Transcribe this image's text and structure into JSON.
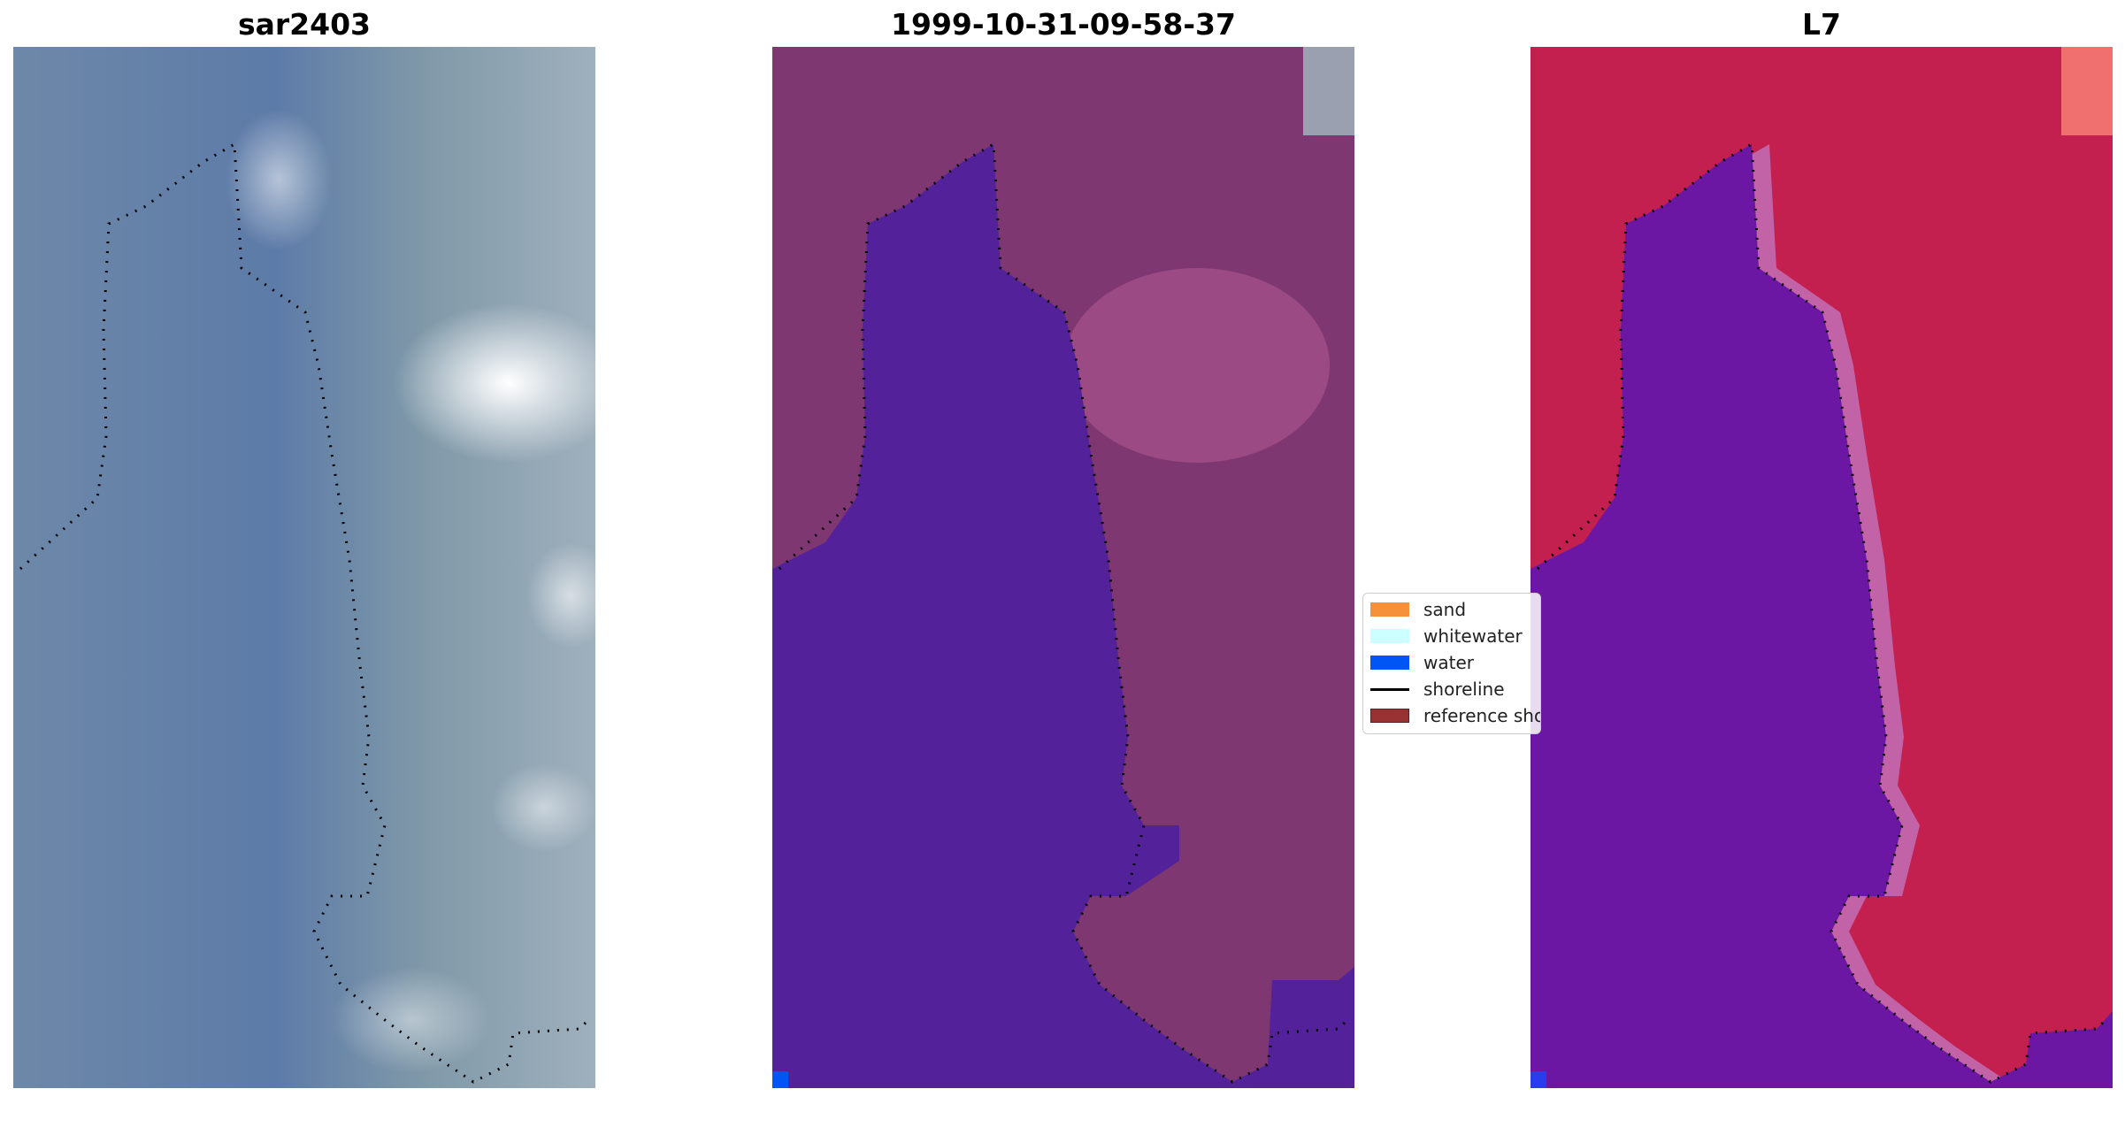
{
  "panels": [
    {
      "title": "sar2403"
    },
    {
      "title": "1999-10-31-09-58-37"
    },
    {
      "title": "L7"
    }
  ],
  "legend": {
    "items": [
      {
        "label": "sand",
        "color": "#f5913a",
        "kind": "patch"
      },
      {
        "label": "whitewater",
        "color": "#ccffff",
        "kind": "patch"
      },
      {
        "label": "water",
        "color": "#0055f5",
        "kind": "patch"
      },
      {
        "label": "shoreline",
        "color": "#000000",
        "kind": "line"
      },
      {
        "label": "reference shoreline",
        "color": "#993333",
        "kind": "patch"
      }
    ]
  },
  "colors": {
    "rgb_water": "#5f7aa3",
    "rgb_land": "#8a9aaa",
    "rgb_cloud": "#f0f0f5",
    "classified_land": "#7e3770",
    "classified_water": "#53229b",
    "index_land": "#c31f4f",
    "index_water": "#6b17a3"
  }
}
